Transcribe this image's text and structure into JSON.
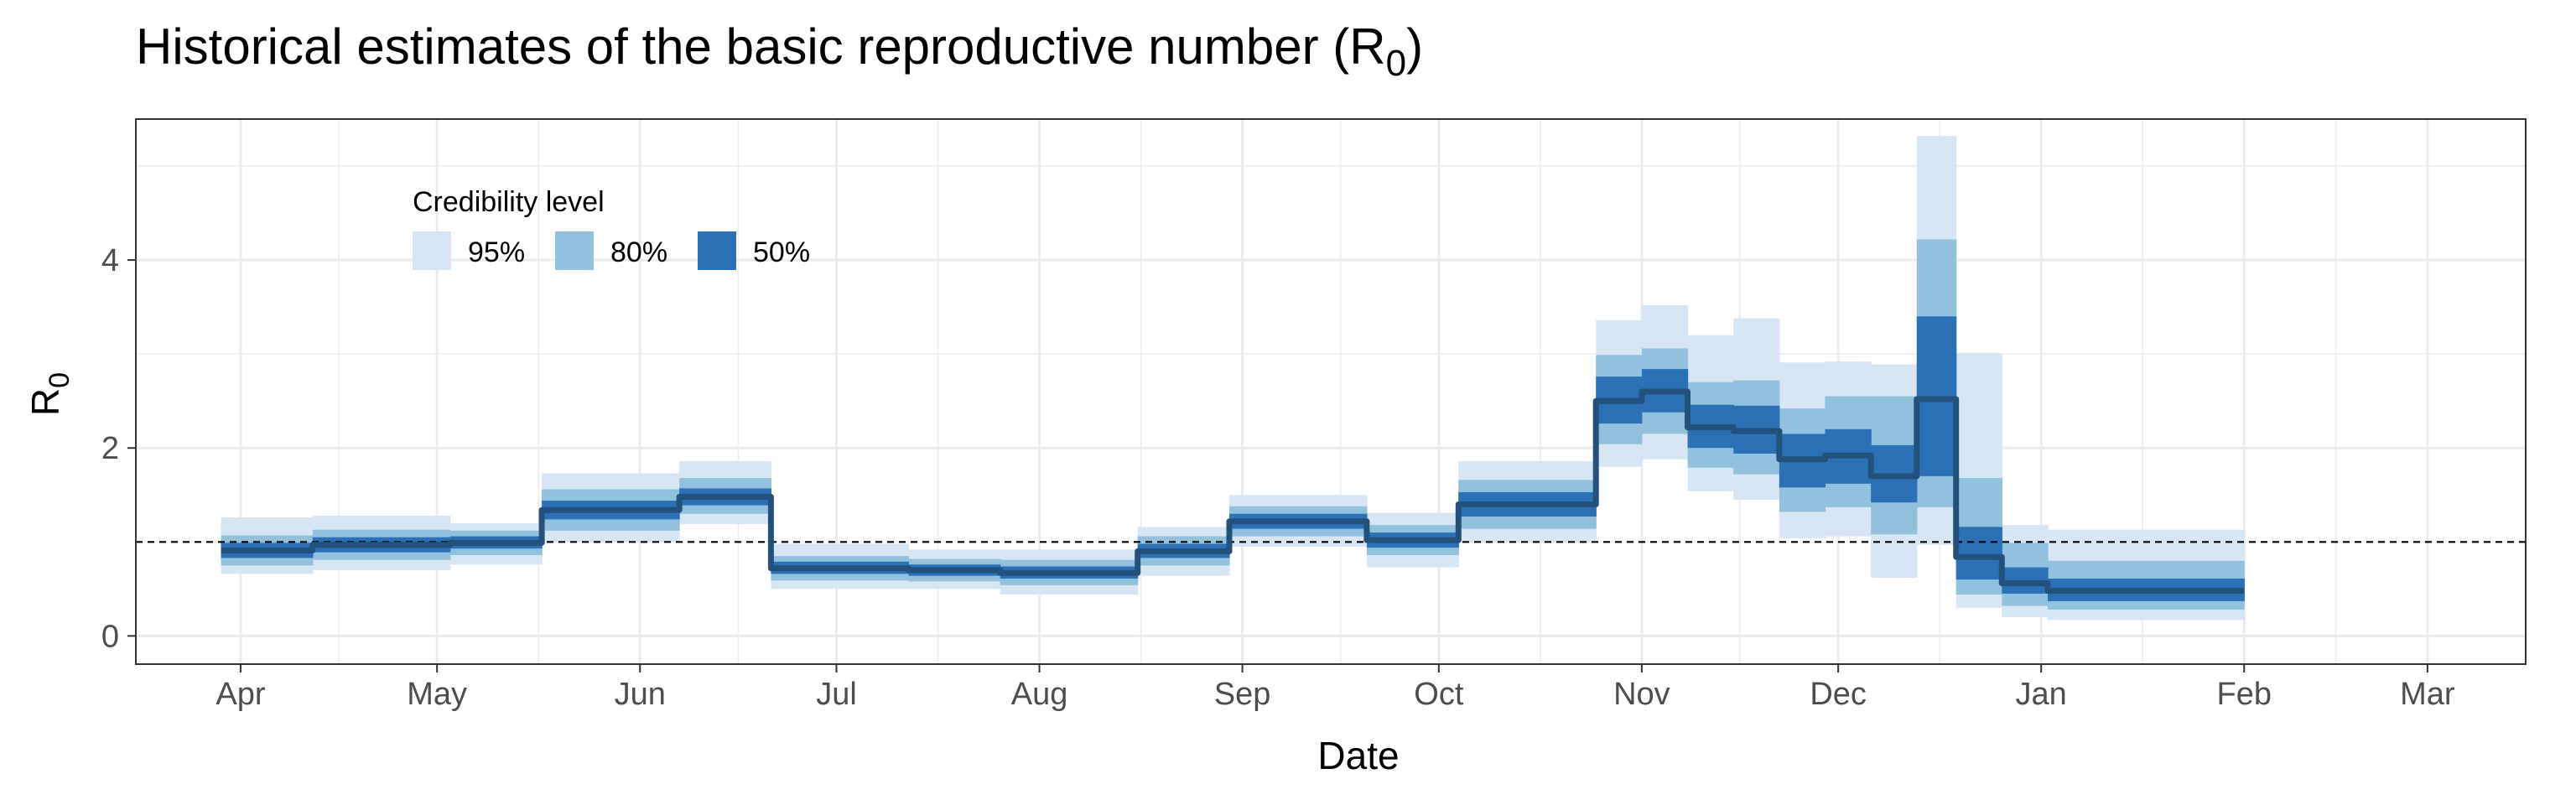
{
  "chart_data": {
    "type": "area",
    "title_main": "Historical estimates of the basic reproductive number (R",
    "title_sub": "0",
    "title_close": ")",
    "xlabel": "Date",
    "ylabel_main": "R",
    "ylabel_sub": "0",
    "xlim": [
      "2020-03-16",
      "2021-03-16"
    ],
    "ylim": [
      -0.3,
      5.5
    ],
    "x_ticks": [
      {
        "date": "2020-04-01",
        "label": "Apr"
      },
      {
        "date": "2020-05-01",
        "label": "May"
      },
      {
        "date": "2020-06-01",
        "label": "Jun"
      },
      {
        "date": "2020-07-01",
        "label": "Jul"
      },
      {
        "date": "2020-08-01",
        "label": "Aug"
      },
      {
        "date": "2020-09-01",
        "label": "Sep"
      },
      {
        "date": "2020-10-01",
        "label": "Oct"
      },
      {
        "date": "2020-11-01",
        "label": "Nov"
      },
      {
        "date": "2020-12-01",
        "label": "Dec"
      },
      {
        "date": "2021-01-01",
        "label": "Jan"
      },
      {
        "date": "2021-02-01",
        "label": "Feb"
      },
      {
        "date": "2021-03-01",
        "label": "Mar"
      }
    ],
    "y_ticks": [
      0,
      2,
      4
    ],
    "reference_line": 1,
    "grid": true,
    "legend": {
      "title": "Credibility level",
      "placement": "top-left",
      "entries": [
        {
          "label": "95%",
          "color": "#d6e6f4"
        },
        {
          "label": "80%",
          "color": "#92c1de"
        },
        {
          "label": "50%",
          "color": "#2c70b6"
        }
      ]
    },
    "colors": {
      "ci95": "#d6e6f4",
      "ci80": "#92c1de",
      "ci50": "#2c70b6",
      "median": "#24507c",
      "grid": "#ebebeb",
      "reference": "#000000"
    },
    "segments": [
      {
        "start": "2020-03-29",
        "end": "2020-04-12",
        "median": 0.91,
        "ci50": [
          0.83,
          0.99
        ],
        "ci80": [
          0.75,
          1.07
        ],
        "ci95": [
          0.66,
          1.26
        ]
      },
      {
        "start": "2020-04-12",
        "end": "2020-05-03",
        "median": 0.97,
        "ci50": [
          0.89,
          1.05
        ],
        "ci80": [
          0.81,
          1.13
        ],
        "ci95": [
          0.7,
          1.28
        ]
      },
      {
        "start": "2020-05-03",
        "end": "2020-05-17",
        "median": 0.99,
        "ci50": [
          0.93,
          1.06
        ],
        "ci80": [
          0.86,
          1.12
        ],
        "ci95": [
          0.76,
          1.2
        ]
      },
      {
        "start": "2020-05-17",
        "end": "2020-06-07",
        "median": 1.34,
        "ci50": [
          1.24,
          1.44
        ],
        "ci80": [
          1.12,
          1.56
        ],
        "ci95": [
          1.0,
          1.73
        ]
      },
      {
        "start": "2020-06-07",
        "end": "2020-06-21",
        "median": 1.48,
        "ci50": [
          1.39,
          1.57
        ],
        "ci80": [
          1.3,
          1.68
        ],
        "ci95": [
          1.19,
          1.86
        ]
      },
      {
        "start": "2020-06-21",
        "end": "2020-07-12",
        "median": 0.72,
        "ci50": [
          0.66,
          0.79
        ],
        "ci80": [
          0.59,
          0.85
        ],
        "ci95": [
          0.5,
          0.98
        ]
      },
      {
        "start": "2020-07-12",
        "end": "2020-07-26",
        "median": 0.7,
        "ci50": [
          0.64,
          0.76
        ],
        "ci80": [
          0.58,
          0.82
        ],
        "ci95": [
          0.5,
          0.92
        ]
      },
      {
        "start": "2020-07-26",
        "end": "2020-08-16",
        "median": 0.67,
        "ci50": [
          0.61,
          0.74
        ],
        "ci80": [
          0.54,
          0.81
        ],
        "ci95": [
          0.44,
          0.92
        ]
      },
      {
        "start": "2020-08-16",
        "end": "2020-08-30",
        "median": 0.9,
        "ci50": [
          0.83,
          0.98
        ],
        "ci80": [
          0.75,
          1.06
        ],
        "ci95": [
          0.64,
          1.16
        ]
      },
      {
        "start": "2020-08-30",
        "end": "2020-09-20",
        "median": 1.22,
        "ci50": [
          1.14,
          1.3
        ],
        "ci80": [
          1.06,
          1.38
        ],
        "ci95": [
          0.95,
          1.5
        ]
      },
      {
        "start": "2020-09-20",
        "end": "2020-10-04",
        "median": 1.02,
        "ci50": [
          0.94,
          1.1
        ],
        "ci80": [
          0.86,
          1.18
        ],
        "ci95": [
          0.73,
          1.31
        ]
      },
      {
        "start": "2020-10-04",
        "end": "2020-10-25",
        "median": 1.4,
        "ci50": [
          1.27,
          1.53
        ],
        "ci80": [
          1.14,
          1.66
        ],
        "ci95": [
          0.99,
          1.86
        ]
      },
      {
        "start": "2020-10-25",
        "end": "2020-11-01",
        "median": 2.5,
        "ci50": [
          2.26,
          2.76
        ],
        "ci80": [
          2.04,
          2.99
        ],
        "ci95": [
          1.8,
          3.36
        ]
      },
      {
        "start": "2020-11-01",
        "end": "2020-11-08",
        "median": 2.6,
        "ci50": [
          2.38,
          2.84
        ],
        "ci80": [
          2.15,
          3.06
        ],
        "ci95": [
          1.88,
          3.52
        ]
      },
      {
        "start": "2020-11-08",
        "end": "2020-11-15",
        "median": 2.22,
        "ci50": [
          2.0,
          2.46
        ],
        "ci80": [
          1.79,
          2.7
        ],
        "ci95": [
          1.54,
          3.2
        ]
      },
      {
        "start": "2020-11-15",
        "end": "2020-11-22",
        "median": 2.18,
        "ci50": [
          1.94,
          2.45
        ],
        "ci80": [
          1.72,
          2.72
        ],
        "ci95": [
          1.45,
          3.38
        ]
      },
      {
        "start": "2020-11-22",
        "end": "2020-11-29",
        "median": 1.88,
        "ci50": [
          1.58,
          2.15
        ],
        "ci80": [
          1.32,
          2.42
        ],
        "ci95": [
          1.04,
          2.91
        ]
      },
      {
        "start": "2020-11-29",
        "end": "2020-12-06",
        "median": 1.92,
        "ci50": [
          1.62,
          2.2
        ],
        "ci80": [
          1.37,
          2.55
        ],
        "ci95": [
          1.06,
          2.92
        ]
      },
      {
        "start": "2020-12-06",
        "end": "2020-12-13",
        "median": 1.7,
        "ci50": [
          1.42,
          2.03
        ],
        "ci80": [
          1.08,
          2.55
        ],
        "ci95": [
          0.62,
          2.89
        ]
      },
      {
        "start": "2020-12-13",
        "end": "2020-12-19",
        "median": 2.52,
        "ci50": [
          1.7,
          3.4
        ],
        "ci80": [
          1.37,
          4.22
        ],
        "ci95": [
          0.97,
          5.32
        ]
      },
      {
        "start": "2020-12-19",
        "end": "2020-12-26",
        "median": 0.84,
        "ci50": [
          0.6,
          1.16
        ],
        "ci80": [
          0.44,
          1.68
        ],
        "ci95": [
          0.3,
          3.01
        ]
      },
      {
        "start": "2020-12-26",
        "end": "2021-01-02",
        "median": 0.56,
        "ci50": [
          0.45,
          0.73
        ],
        "ci80": [
          0.32,
          0.99
        ],
        "ci95": [
          0.2,
          1.18
        ]
      },
      {
        "start": "2021-01-02",
        "end": "2021-02-01",
        "median": 0.48,
        "ci50": [
          0.37,
          0.61
        ],
        "ci80": [
          0.28,
          0.8
        ],
        "ci95": [
          0.17,
          1.13
        ]
      }
    ]
  }
}
